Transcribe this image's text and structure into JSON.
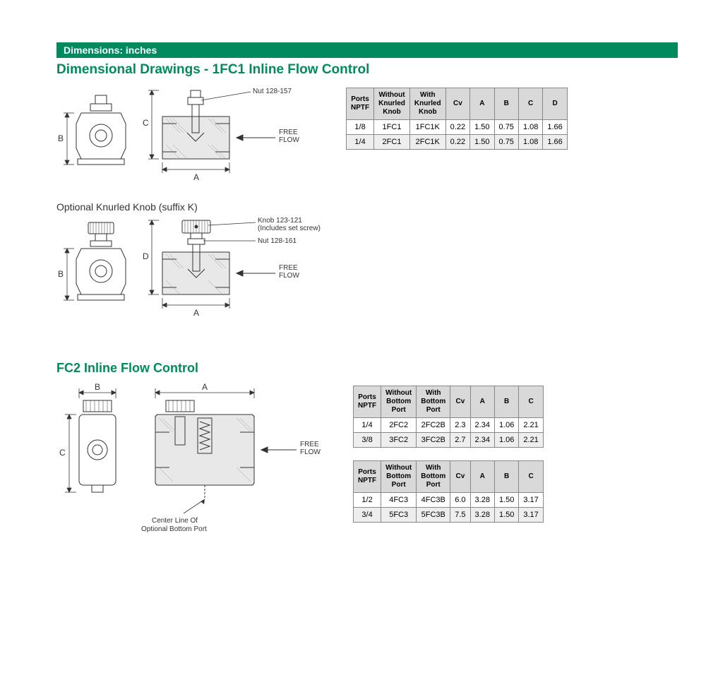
{
  "banner": "Dimensions: inches",
  "section1": {
    "title": "Dimensional Drawings - 1FC1 Inline Flow Control",
    "drawing1": {
      "nut_label": "Nut 128-157",
      "free_flow": "FREE\nFLOW",
      "dimA": "A",
      "dimB": "B",
      "dimC": "C"
    },
    "drawing2_heading": "Optional Knurled Knob (suffix K)",
    "drawing2": {
      "knob_label": "Knob 123-121\n(Includes set screw)",
      "nut_label": "Nut 128-161",
      "free_flow": "FREE\nFLOW",
      "dimA": "A",
      "dimB": "B",
      "dimD": "D"
    },
    "table": {
      "headers": [
        "Ports\nNPTF",
        "Without\nKnurled\nKnob",
        "With\nKnurled\nKnob",
        "Cv",
        "A",
        "B",
        "C",
        "D"
      ],
      "rows": [
        [
          "1/8",
          "1FC1",
          "1FC1K",
          "0.22",
          "1.50",
          "0.75",
          "1.08",
          "1.66"
        ],
        [
          "1/4",
          "2FC1",
          "2FC1K",
          "0.22",
          "1.50",
          "0.75",
          "1.08",
          "1.66"
        ]
      ]
    }
  },
  "section2": {
    "title": "FC2 Inline Flow Control",
    "drawing": {
      "free_flow": "FREE\nFLOW",
      "dimA": "A",
      "dimB": "B",
      "dimC": "C",
      "bottom_label": "Center Line Of\nOptional Bottom Port"
    },
    "tableA": {
      "headers": [
        "Ports\nNPTF",
        "Without\nBottom\nPort",
        "With\nBottom\nPort",
        "Cv",
        "A",
        "B",
        "C"
      ],
      "rows": [
        [
          "1/4",
          "2FC2",
          "2FC2B",
          "2.3",
          "2.34",
          "1.06",
          "2.21"
        ],
        [
          "3/8",
          "3FC2",
          "3FC2B",
          "2.7",
          "2.34",
          "1.06",
          "2.21"
        ]
      ]
    },
    "tableB": {
      "headers": [
        "Ports\nNPTF",
        "Without\nBottom\nPort",
        "With\nBottom\nPort",
        "Cv",
        "A",
        "B",
        "C"
      ],
      "rows": [
        [
          "1/2",
          "4FC3",
          "4FC3B",
          "6.0",
          "3.28",
          "1.50",
          "3.17"
        ],
        [
          "3/4",
          "5FC3",
          "5FC3B",
          "7.5",
          "3.28",
          "1.50",
          "3.17"
        ]
      ]
    }
  },
  "styling": {
    "brand_green": "#008a5e",
    "header_gray": "#d9d9d9",
    "alt_row_gray": "#eeeeee",
    "border_gray": "#888888"
  }
}
